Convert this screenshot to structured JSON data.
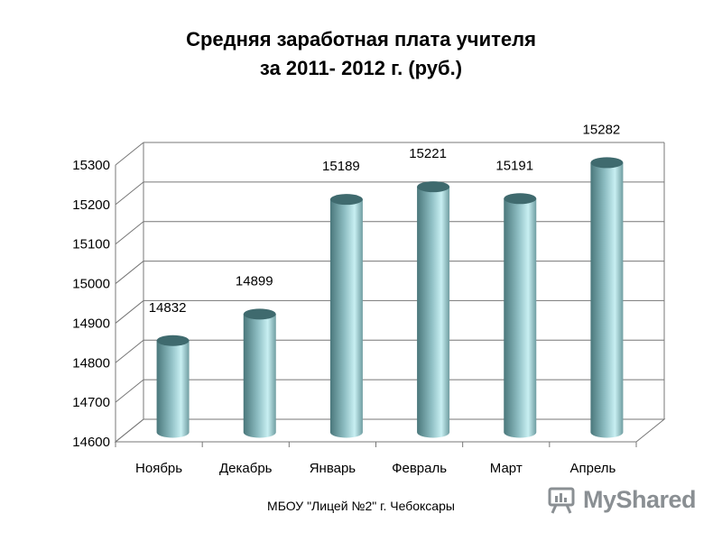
{
  "title_line1": "Средняя заработная плата учителя",
  "title_line2": "за 2011- 2012 г. (руб.)",
  "footer": "МБОУ \"Лицей №2\" г. Чебоксары",
  "watermark": {
    "text": "MyShared",
    "icon": "presentation-board-icon"
  },
  "chart_data": {
    "type": "bar",
    "title": "Средняя заработная плата учителя за 2011- 2012 г. (руб.)",
    "categories": [
      "Ноябрь",
      "Декабрь",
      "Январь",
      "Февраль",
      "Март",
      "Апрель"
    ],
    "values": [
      14832,
      14899,
      15189,
      15221,
      15191,
      15282
    ],
    "data_labels": [
      "14832",
      "14899",
      "15189",
      "15221",
      "15191",
      "15282"
    ],
    "ylim": [
      14600,
      15300
    ],
    "yticks": [
      14600,
      14700,
      14800,
      14900,
      15000,
      15100,
      15200,
      15300
    ],
    "grid": true,
    "style": "3d-cylinder",
    "colors": {
      "bar_dark": "#4d7c80",
      "bar_light": "#c9f2f5",
      "grid": "#777777"
    }
  }
}
